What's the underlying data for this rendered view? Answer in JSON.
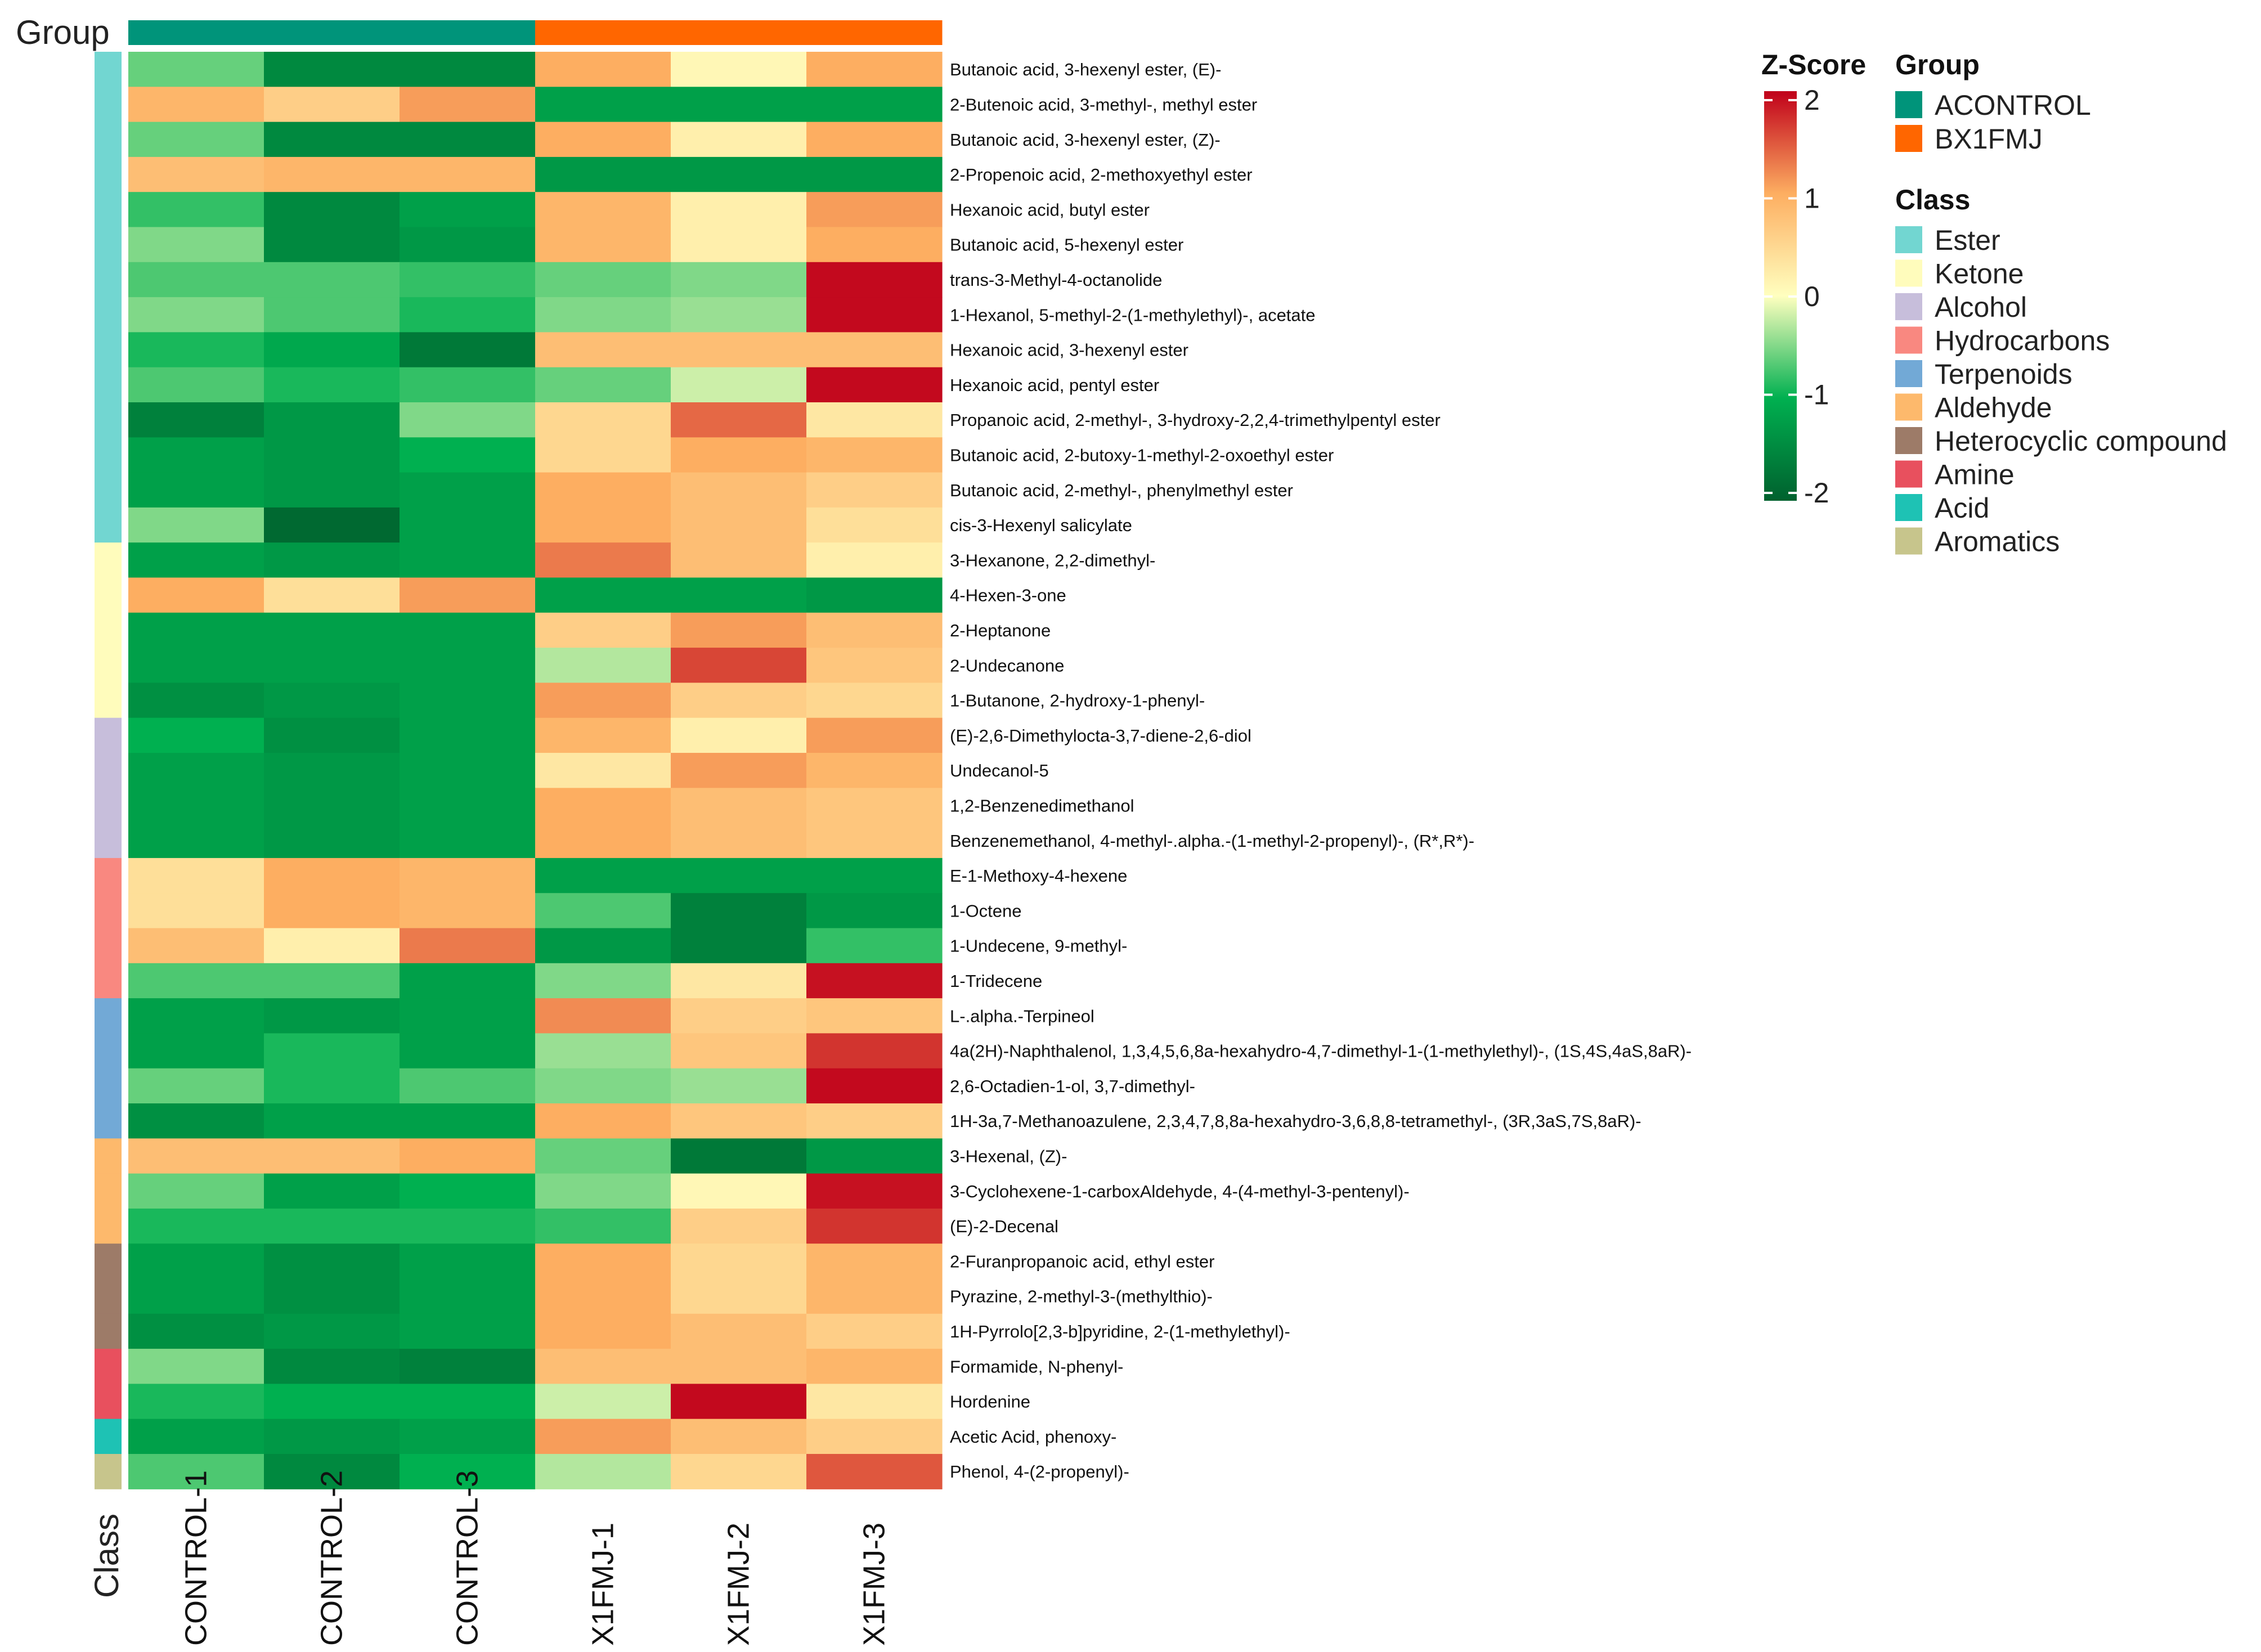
{
  "chart_data": {
    "type": "heatmap",
    "group_track_label": "Group",
    "class_track_label": "Class",
    "columns": [
      {
        "label": "CONTROL-1",
        "group": "ACONTROL"
      },
      {
        "label": "CONTROL-2",
        "group": "ACONTROL"
      },
      {
        "label": "CONTROL-3",
        "group": "ACONTROL"
      },
      {
        "label": "X1FMJ-1",
        "group": "BX1FMJ"
      },
      {
        "label": "X1FMJ-2",
        "group": "BX1FMJ"
      },
      {
        "label": "X1FMJ-3",
        "group": "BX1FMJ"
      }
    ],
    "rows": [
      {
        "label": "Butanoic acid, 3-hexenyl ester, (E)-",
        "class": "Ester",
        "values": [
          -0.6,
          -1.5,
          -1.5,
          1.0,
          0.1,
          1.0
        ]
      },
      {
        "label": "2-Butenoic acid, 3-methyl-, methyl ester",
        "class": "Ester",
        "values": [
          0.9,
          0.6,
          1.1,
          -1.2,
          -1.2,
          -1.2
        ]
      },
      {
        "label": "Butanoic acid, 3-hexenyl ester, (Z)-",
        "class": "Ester",
        "values": [
          -0.6,
          -1.5,
          -1.5,
          1.0,
          0.2,
          1.0
        ]
      },
      {
        "label": "2-Propenoic acid, 2-methoxyethyl ester",
        "class": "Ester",
        "values": [
          0.8,
          0.9,
          0.9,
          -1.3,
          -1.3,
          -1.3
        ]
      },
      {
        "label": "Hexanoic acid, butyl ester",
        "class": "Ester",
        "values": [
          -0.8,
          -1.5,
          -1.2,
          0.9,
          0.2,
          1.1
        ]
      },
      {
        "label": "Butanoic acid, 5-hexenyl ester",
        "class": "Ester",
        "values": [
          -0.5,
          -1.5,
          -1.3,
          0.9,
          0.2,
          1.0
        ]
      },
      {
        "label": "trans-3-Methyl-4-octanolide",
        "class": "Ester",
        "values": [
          -0.7,
          -0.7,
          -0.8,
          -0.6,
          -0.5,
          1.95
        ]
      },
      {
        "label": "1-Hexanol, 5-methyl-2-(1-methylethyl)-, acetate",
        "class": "Ester",
        "values": [
          -0.5,
          -0.7,
          -0.9,
          -0.5,
          -0.4,
          1.95
        ]
      },
      {
        "label": "Hexanoic acid, 3-hexenyl ester",
        "class": "Ester",
        "values": [
          -0.9,
          -1.1,
          -1.7,
          0.8,
          0.8,
          0.8
        ]
      },
      {
        "label": "Hexanoic acid, pentyl ester",
        "class": "Ester",
        "values": [
          -0.7,
          -0.9,
          -0.8,
          -0.6,
          -0.2,
          1.95
        ]
      },
      {
        "label": "Propanoic acid, 2-methyl-, 3-hydroxy-2,2,4-trimethylpentyl ester",
        "class": "Ester",
        "values": [
          -1.6,
          -1.3,
          -0.5,
          0.5,
          1.4,
          0.3
        ]
      },
      {
        "label": "Butanoic acid, 2-butoxy-1-methyl-2-oxoethyl ester",
        "class": "Ester",
        "values": [
          -1.2,
          -1.3,
          -1.0,
          0.5,
          1.0,
          0.9
        ]
      },
      {
        "label": "Butanoic acid, 2-methyl-, phenylmethyl ester",
        "class": "Ester",
        "values": [
          -1.2,
          -1.3,
          -1.2,
          1.0,
          0.8,
          0.6
        ]
      },
      {
        "label": "cis-3-Hexenyl salicylate",
        "class": "Ester",
        "values": [
          -0.5,
          -1.9,
          -1.2,
          1.0,
          0.8,
          0.4
        ]
      },
      {
        "label": "3-Hexanone, 2,2-dimethyl-",
        "class": "Ketone",
        "values": [
          -1.2,
          -1.3,
          -1.2,
          1.3,
          0.8,
          0.2
        ]
      },
      {
        "label": "4-Hexen-3-one",
        "class": "Ketone",
        "values": [
          1.0,
          0.4,
          1.1,
          -1.2,
          -1.2,
          -1.3
        ]
      },
      {
        "label": "2-Heptanone",
        "class": "Ketone",
        "values": [
          -1.2,
          -1.2,
          -1.2,
          0.6,
          1.1,
          0.8
        ]
      },
      {
        "label": "2-Undecanone",
        "class": "Ketone",
        "values": [
          -1.2,
          -1.2,
          -1.2,
          -0.3,
          1.6,
          0.7
        ]
      },
      {
        "label": "1-Butanone, 2-hydroxy-1-phenyl-",
        "class": "Ketone",
        "values": [
          -1.4,
          -1.3,
          -1.2,
          1.1,
          0.6,
          0.5
        ]
      },
      {
        "label": "(E)-2,6-Dimethylocta-3,7-diene-2,6-diol",
        "class": "Alcohol",
        "values": [
          -1.0,
          -1.4,
          -1.2,
          0.9,
          0.2,
          1.1
        ]
      },
      {
        "label": "Undecanol-5",
        "class": "Alcohol",
        "values": [
          -1.2,
          -1.3,
          -1.2,
          0.3,
          1.1,
          0.9
        ]
      },
      {
        "label": "1,2-Benzenedimethanol",
        "class": "Alcohol",
        "values": [
          -1.2,
          -1.3,
          -1.2,
          1.0,
          0.8,
          0.7
        ]
      },
      {
        "label": "Benzenemethanol, 4-methyl-.alpha.-(1-methyl-2-propenyl)-, (R*,R*)-",
        "class": "Alcohol",
        "values": [
          -1.2,
          -1.3,
          -1.2,
          1.0,
          0.8,
          0.7
        ]
      },
      {
        "label": "E-1-Methoxy-4-hexene",
        "class": "Hydrocarbons",
        "values": [
          0.4,
          1.0,
          0.9,
          -1.2,
          -1.2,
          -1.2
        ]
      },
      {
        "label": "1-Octene",
        "class": "Hydrocarbons",
        "values": [
          0.4,
          1.0,
          0.9,
          -0.7,
          -1.6,
          -1.3
        ]
      },
      {
        "label": "1-Undecene, 9-methyl-",
        "class": "Hydrocarbons",
        "values": [
          0.8,
          0.2,
          1.3,
          -1.3,
          -1.6,
          -0.8
        ]
      },
      {
        "label": "1-Tridecene",
        "class": "Hydrocarbons",
        "values": [
          -0.7,
          -0.7,
          -1.2,
          -0.5,
          0.3,
          1.9
        ]
      },
      {
        "label": "L-.alpha.-Terpineol",
        "class": "Terpenoids",
        "values": [
          -1.2,
          -1.3,
          -1.2,
          1.2,
          0.6,
          0.7
        ]
      },
      {
        "label": "4a(2H)-Naphthalenol, 1,3,4,5,6,8a-hexahydro-4,7-dimethyl-1-(1-methylethyl)-, (1S,4S,4aS,8aR)-",
        "class": "Terpenoids",
        "values": [
          -1.2,
          -0.9,
          -1.2,
          -0.4,
          0.7,
          1.7
        ]
      },
      {
        "label": "2,6-Octadien-1-ol, 3,7-dimethyl-",
        "class": "Terpenoids",
        "values": [
          -0.6,
          -0.9,
          -0.7,
          -0.5,
          -0.4,
          1.95
        ]
      },
      {
        "label": "1H-3a,7-Methanoazulene, 2,3,4,7,8,8a-hexahydro-3,6,8,8-tetramethyl-, (3R,3aS,7S,8aR)-",
        "class": "Terpenoids",
        "values": [
          -1.4,
          -1.2,
          -1.2,
          1.0,
          0.7,
          0.6
        ]
      },
      {
        "label": "3-Hexenal, (Z)-",
        "class": "Aldehyde",
        "values": [
          0.8,
          0.8,
          1.0,
          -0.6,
          -1.7,
          -1.3
        ]
      },
      {
        "label": "3-Cyclohexene-1-carboxAldehyde, 4-(4-methyl-3-pentenyl)-",
        "class": "Aldehyde",
        "values": [
          -0.6,
          -1.2,
          -1.0,
          -0.5,
          0.1,
          1.9
        ]
      },
      {
        "label": "(E)-2-Decenal",
        "class": "Aldehyde",
        "values": [
          -0.9,
          -0.9,
          -0.9,
          -0.8,
          0.6,
          1.7
        ]
      },
      {
        "label": "2-Furanpropanoic acid, ethyl ester",
        "class": "Heterocyclic compound",
        "values": [
          -1.2,
          -1.4,
          -1.2,
          1.0,
          0.5,
          0.9
        ]
      },
      {
        "label": "Pyrazine, 2-methyl-3-(methylthio)-",
        "class": "Heterocyclic compound",
        "values": [
          -1.2,
          -1.4,
          -1.2,
          1.0,
          0.5,
          0.9
        ]
      },
      {
        "label": "1H-Pyrrolo[2,3-b]pyridine, 2-(1-methylethyl)-",
        "class": "Heterocyclic compound",
        "values": [
          -1.4,
          -1.3,
          -1.2,
          1.0,
          0.8,
          0.6
        ]
      },
      {
        "label": "Formamide, N-phenyl-",
        "class": "Amine",
        "values": [
          -0.5,
          -1.5,
          -1.6,
          0.8,
          0.8,
          0.9
        ]
      },
      {
        "label": "Hordenine",
        "class": "Amine",
        "values": [
          -0.9,
          -1.0,
          -1.0,
          -0.2,
          1.95,
          0.3
        ]
      },
      {
        "label": "Acetic Acid, phenoxy-",
        "class": "Acid",
        "values": [
          -1.2,
          -1.3,
          -1.2,
          1.1,
          0.8,
          0.6
        ]
      },
      {
        "label": "Phenol, 4-(2-propenyl)-",
        "class": "Aromatics",
        "values": [
          -0.7,
          -1.5,
          -1.0,
          -0.3,
          0.5,
          1.5
        ]
      }
    ],
    "color_scale": {
      "title": "Z-Score",
      "range": [
        -2,
        2
      ],
      "ticks": [
        2,
        1,
        0,
        -1,
        -2
      ],
      "tick_labels": [
        "2",
        "1",
        "0",
        "-1",
        "-2"
      ],
      "stops": [
        {
          "value": -2,
          "color": "#00612e"
        },
        {
          "value": -1,
          "color": "#00b050"
        },
        {
          "value": 0,
          "color": "#ffffbf"
        },
        {
          "value": 1,
          "color": "#fdae61"
        },
        {
          "value": 2,
          "color": "#c0001a"
        }
      ]
    },
    "group_legend": {
      "title": "Group",
      "items": [
        {
          "name": "ACONTROL",
          "color": "#00947a"
        },
        {
          "name": "BX1FMJ",
          "color": "#ff6600"
        }
      ]
    },
    "class_legend": {
      "title": "Class",
      "items": [
        {
          "name": "Ester",
          "color": "#72d6d1"
        },
        {
          "name": "Ketone",
          "color": "#fffcbc"
        },
        {
          "name": "Alcohol",
          "color": "#c7bedb"
        },
        {
          "name": "Hydrocarbons",
          "color": "#f98880"
        },
        {
          "name": "Terpenoids",
          "color": "#72a9d6"
        },
        {
          "name": "Aldehyde",
          "color": "#fdb96c"
        },
        {
          "name": "Heterocyclic compound",
          "color": "#9d7b68"
        },
        {
          "name": "Amine",
          "color": "#e8505e"
        },
        {
          "name": "Acid",
          "color": "#1ec2b4"
        },
        {
          "name": "Aromatics",
          "color": "#c7c58c"
        }
      ]
    }
  }
}
